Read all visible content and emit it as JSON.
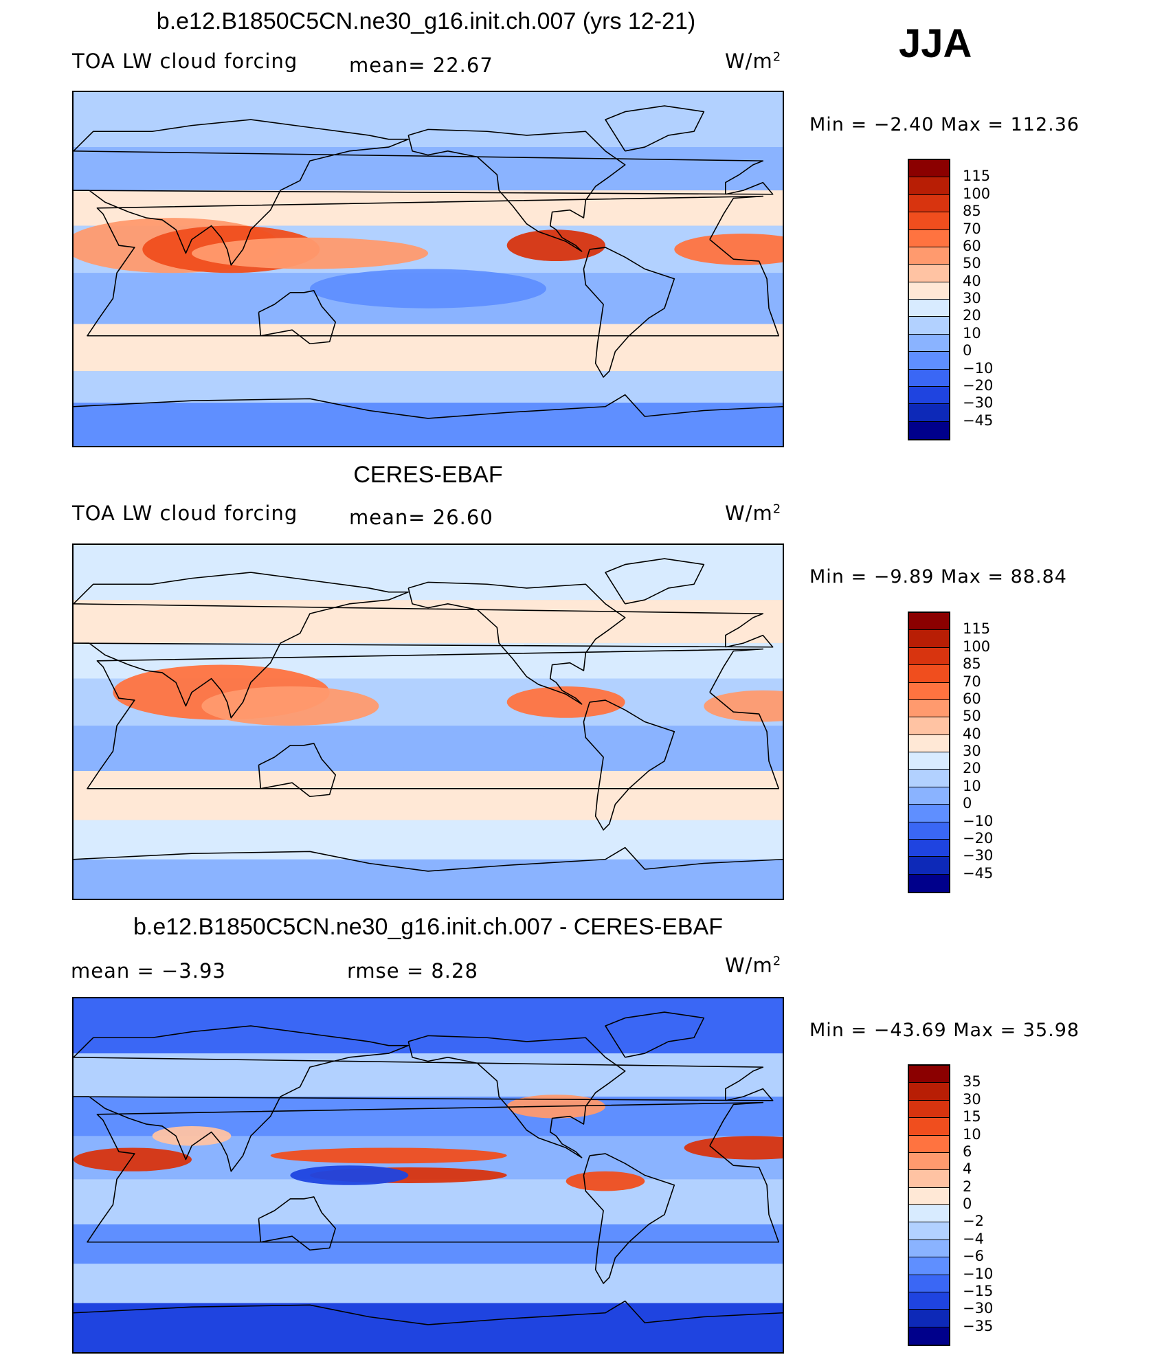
{
  "season": "JJA",
  "panels": [
    {
      "title": "b.e12.B1850C5CN.ne30_g16.init.ch.007 (yrs 12-21)",
      "left_label": "TOA LW cloud forcing",
      "mid_label": "mean=   22.67",
      "units": "W/m",
      "units_sup": "2",
      "minmax": "Min =   −2.40  Max  =  112.36",
      "map_kind": "field",
      "colorbar": {
        "labels": [
          "115",
          "100",
          "85",
          "70",
          "60",
          "50",
          "40",
          "30",
          "20",
          "10",
          "0",
          "−10",
          "−20",
          "−30",
          "−45"
        ],
        "colors": [
          "#8b0000",
          "#b81e05",
          "#d8340f",
          "#f04e1e",
          "#ff7340",
          "#ff9a6e",
          "#ffc3a3",
          "#ffe8d6",
          "#d8ebff",
          "#b2d1ff",
          "#8ab3ff",
          "#5f8fff",
          "#3a67f5",
          "#1f44e0",
          "#0d29b8",
          "#00008b"
        ]
      }
    },
    {
      "title": "CERES-EBAF",
      "left_label": "TOA LW cloud forcing",
      "mid_label": "mean=   26.60",
      "units": "W/m",
      "units_sup": "2",
      "minmax": "Min =   −9.89  Max  =   88.84",
      "map_kind": "obs",
      "colorbar": {
        "labels": [
          "115",
          "100",
          "85",
          "70",
          "60",
          "50",
          "40",
          "30",
          "20",
          "10",
          "0",
          "−10",
          "−20",
          "−30",
          "−45"
        ],
        "colors": [
          "#8b0000",
          "#b81e05",
          "#d8340f",
          "#f04e1e",
          "#ff7340",
          "#ff9a6e",
          "#ffc3a3",
          "#ffe8d6",
          "#d8ebff",
          "#b2d1ff",
          "#8ab3ff",
          "#5f8fff",
          "#3a67f5",
          "#1f44e0",
          "#0d29b8",
          "#00008b"
        ]
      }
    },
    {
      "title": "b.e12.B1850C5CN.ne30_g16.init.ch.007 - CERES-EBAF",
      "left_label": "mean =    −3.93",
      "mid_label": "rmse =     8.28",
      "units": "W/m",
      "units_sup": "2",
      "minmax": "Min = −43.69  Max  =    35.98",
      "map_kind": "diff",
      "colorbar": {
        "labels": [
          "35",
          "30",
          "15",
          "10",
          "6",
          "4",
          "2",
          "0",
          "−2",
          "−4",
          "−6",
          "−10",
          "−15",
          "−30",
          "−35"
        ],
        "colors": [
          "#8b0000",
          "#b81e05",
          "#d8340f",
          "#f04e1e",
          "#ff7340",
          "#ff9a6e",
          "#ffc3a3",
          "#ffe8d6",
          "#d8ebff",
          "#b2d1ff",
          "#8ab3ff",
          "#5f8fff",
          "#3a67f5",
          "#1f44e0",
          "#0d29b8",
          "#00008b"
        ]
      }
    }
  ],
  "chart_data": [
    {
      "type": "heatmap",
      "title": "b.e12.B1850C5CN.ne30_g16.init.ch.007 (yrs 12-21)",
      "variable": "TOA LW cloud forcing",
      "units": "W/m2",
      "season": "JJA",
      "mean": 22.67,
      "min": -2.4,
      "max": 112.36,
      "contour_levels": [
        -45,
        -30,
        -20,
        -10,
        0,
        10,
        20,
        30,
        40,
        50,
        60,
        70,
        85,
        100,
        115
      ]
    },
    {
      "type": "heatmap",
      "title": "CERES-EBAF",
      "variable": "TOA LW cloud forcing",
      "units": "W/m2",
      "season": "JJA",
      "mean": 26.6,
      "min": -9.89,
      "max": 88.84,
      "contour_levels": [
        -45,
        -30,
        -20,
        -10,
        0,
        10,
        20,
        30,
        40,
        50,
        60,
        70,
        85,
        100,
        115
      ]
    },
    {
      "type": "heatmap",
      "title": "b.e12.B1850C5CN.ne30_g16.init.ch.007 - CERES-EBAF",
      "units": "W/m2",
      "season": "JJA",
      "mean": -3.93,
      "rmse": 8.28,
      "min": -43.69,
      "max": 35.98,
      "contour_levels": [
        -35,
        -30,
        -15,
        -10,
        -6,
        -4,
        -2,
        0,
        2,
        4,
        6,
        10,
        15,
        30,
        35
      ]
    }
  ]
}
